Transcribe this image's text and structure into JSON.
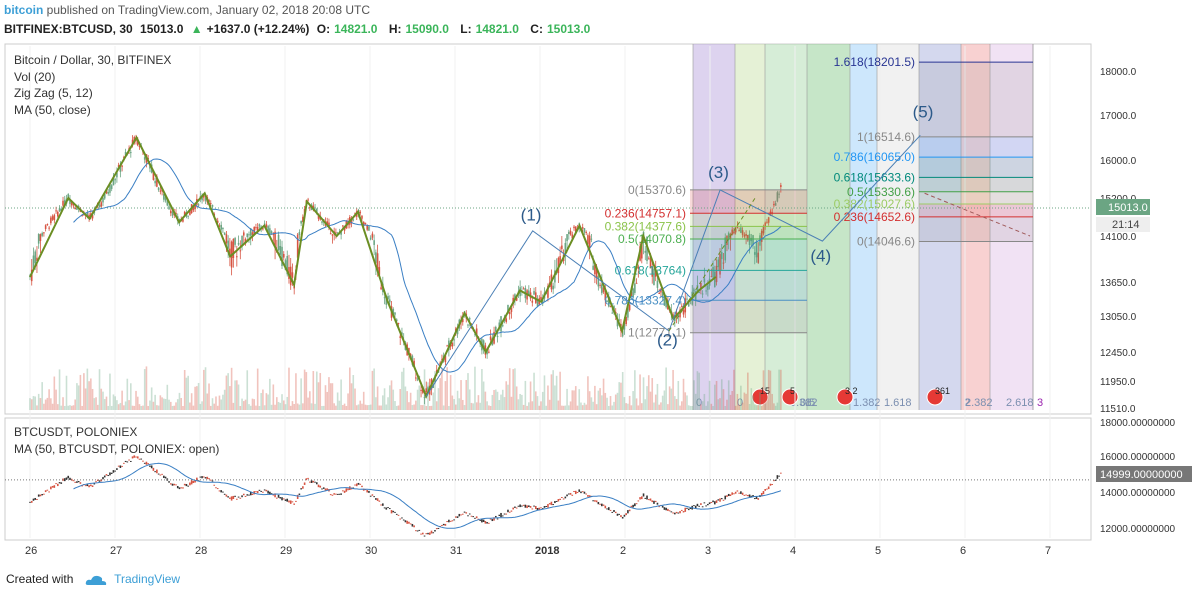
{
  "header": {
    "brand": "bitcoin",
    "published": "published on TradingView.com, January 02, 2018 20:08 UTC",
    "symbol": "BITFINEX:BTCUSD, 30",
    "last": "15013.0",
    "change_arrow": "▲",
    "change": "+1637.0 (+12.24%)",
    "o_label": "O:",
    "o": "14821.0",
    "h_label": "H:",
    "h": "15090.0",
    "l_label": "L:",
    "l": "14821.0",
    "c_label": "C:",
    "c": "15013.0"
  },
  "legend": {
    "title": "Bitcoin / Dollar, 30, BITFINEX",
    "vol": "Vol (20)",
    "zigzag": "Zig Zag (5, 12)",
    "ma": "MA (50, close)"
  },
  "lower_legend": {
    "title": "BTCUSDT, POLONIEX",
    "ma": "MA (50, BTCUSDT, POLONIEX: open)"
  },
  "price_badge": {
    "value": "15013.0",
    "countdown": "21:14"
  },
  "lower_badge": "14999.00000000",
  "footer": {
    "created": "Created with",
    "tv": "TradingView"
  },
  "colors": {
    "up": "#6ba583",
    "down": "#d75442",
    "zigzag": "#6b8e23",
    "ma": "#3a7fc4",
    "fib_line": "#3b5998",
    "accent": "#3d9fd6"
  },
  "chart_data": {
    "type": "candlestick",
    "upper": {
      "y_ticks": [
        "18000.0",
        "17000.0",
        "16000.0",
        "15200.0",
        "14100.0",
        "13650.0",
        "13050.0",
        "12450.0",
        "11950.0",
        "11510.0"
      ],
      "ylim": [
        11500,
        18700
      ],
      "x_ticks": [
        "26",
        "27",
        "28",
        "29",
        "30",
        "31",
        "2018",
        "2",
        "3",
        "4",
        "5",
        "6",
        "7"
      ],
      "zigzag_points": [
        {
          "t": 0.0,
          "p": 13700
        },
        {
          "t": 0.45,
          "p": 15200
        },
        {
          "t": 0.7,
          "p": 14600
        },
        {
          "t": 1.25,
          "p": 16500
        },
        {
          "t": 1.75,
          "p": 14500
        },
        {
          "t": 2.05,
          "p": 15300
        },
        {
          "t": 2.35,
          "p": 13900
        },
        {
          "t": 2.75,
          "p": 14400
        },
        {
          "t": 3.1,
          "p": 13600
        },
        {
          "t": 3.25,
          "p": 15100
        },
        {
          "t": 3.6,
          "p": 14100
        },
        {
          "t": 3.85,
          "p": 14800
        },
        {
          "t": 4.2,
          "p": 13300
        },
        {
          "t": 4.65,
          "p": 11700
        },
        {
          "t": 5.1,
          "p": 13100
        },
        {
          "t": 5.35,
          "p": 12450
        },
        {
          "t": 5.75,
          "p": 13500
        },
        {
          "t": 6.0,
          "p": 13300
        },
        {
          "t": 6.45,
          "p": 14400
        },
        {
          "t": 6.95,
          "p": 12800
        },
        {
          "t": 7.2,
          "p": 14100
        },
        {
          "t": 7.55,
          "p": 13000
        },
        {
          "t": 7.85,
          "p": 13500
        },
        {
          "t": 8.05,
          "p": 13700
        }
      ],
      "wave_labels": [
        {
          "label": "(1)",
          "t": 5.9,
          "p": 14550
        },
        {
          "label": "(2)",
          "t": 7.5,
          "p": 12560
        },
        {
          "label": "(3)",
          "t": 8.1,
          "p": 15620
        },
        {
          "label": "(4)",
          "t": 9.3,
          "p": 13850
        },
        {
          "label": "(5)",
          "t": 10.5,
          "p": 16950
        }
      ],
      "fib_retracement": [
        {
          "label": "0(15370.6)",
          "p": 15370.6,
          "color": "#888888"
        },
        {
          "label": "0.236(14757.1)",
          "p": 14757.1,
          "color": "#d32f2f"
        },
        {
          "label": "0.382(14377.6)",
          "p": 14377.6,
          "color": "#8bc34a"
        },
        {
          "label": "0.5(14070.8)",
          "p": 14070.8,
          "color": "#4caf50"
        },
        {
          "label": "0.618(13764)",
          "p": 13764,
          "color": "#26a69a"
        },
        {
          "label": "0.786(13327.4)",
          "p": 13327.4,
          "color": "#4a90c4"
        },
        {
          "label": "1(12771.1)",
          "p": 12771.1,
          "color": "#888888"
        }
      ],
      "fib_extension": [
        {
          "label": "1.618(18201.5)",
          "p": 18201.5,
          "color": "#283593"
        },
        {
          "label": "1(16514.6)",
          "p": 16514.6,
          "color": "#888888"
        },
        {
          "label": "0.786(16065.0)",
          "p": 16065.0,
          "color": "#2196f3"
        },
        {
          "label": "0.618(15633.6)",
          "p": 15633.6,
          "color": "#00897b"
        },
        {
          "label": "0.5(15330.6)",
          "p": 15330.6,
          "color": "#43a047"
        },
        {
          "label": "0.382(15027.6)",
          "p": 15027.6,
          "color": "#9ccc65"
        },
        {
          "label": "0.236(14652.6)",
          "p": 14652.6,
          "color": "#d32f2f"
        },
        {
          "label": "0(14046.6)",
          "p": 14046.6,
          "color": "#888888"
        }
      ],
      "fib_time_zones": [
        {
          "label": "0",
          "color": "#b39ddb"
        },
        {
          "label": "0",
          "color": "#c5e1a5"
        },
        {
          "label": "0.382",
          "color": "#a5d6a7"
        },
        {
          "label": "0.5",
          "color": "#81c784"
        },
        {
          "label": "1",
          "color": "#90caf9"
        },
        {
          "label": "1.382",
          "color": "#e0e0e0"
        },
        {
          "label": "1.618",
          "color": "#9fa8da"
        },
        {
          "label": "2",
          "color": "#ef9a9a"
        },
        {
          "label": "2.382",
          "color": "#e1bee7"
        },
        {
          "label": "2.618",
          "color": "#f8bbd0"
        },
        {
          "label": "3",
          "color": "#ffffff"
        }
      ],
      "event_badges": [
        "15",
        "5",
        "3 2",
        "361"
      ]
    },
    "lower": {
      "y_ticks": [
        "18000.00000000",
        "16000.00000000",
        "14000.00000000",
        "12000.00000000"
      ],
      "ylim": [
        11500,
        18600
      ]
    }
  }
}
